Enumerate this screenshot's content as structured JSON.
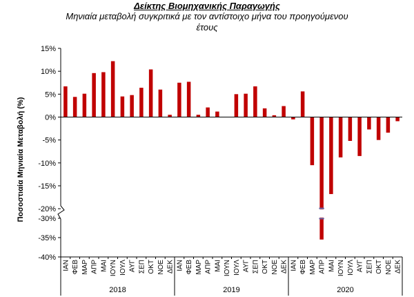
{
  "chart_data": {
    "type": "bar",
    "title": "Δείκτης Βιομηχανικής Παραγωγής",
    "subtitle": "Μηνιαία μεταβολή συγκριτικά με τον αντίστοιχο μήνα του προηγούμενου έτους",
    "ylabel": "Ποσοστιαία Μηνιαία Μεταβολή (%)",
    "xlabel": "",
    "colors": {
      "bar": "#C00000",
      "axis": "#000000",
      "break": "#6A70B0"
    },
    "axis_break": {
      "from": -20,
      "to": -30
    },
    "ylim": [
      -40,
      15
    ],
    "y_ticks": [
      {
        "v": 15,
        "label": "15%"
      },
      {
        "v": 10,
        "label": "10%"
      },
      {
        "v": 5,
        "label": "5%"
      },
      {
        "v": 0,
        "label": "0%"
      },
      {
        "v": -5,
        "label": "-5%"
      },
      {
        "v": -10,
        "label": "-10%"
      },
      {
        "v": -15,
        "label": "-15%"
      },
      {
        "v": -20,
        "label": "-20%"
      },
      {
        "v": -30,
        "label": "-30%"
      },
      {
        "v": -35,
        "label": "-35%"
      },
      {
        "v": -40,
        "label": "-40%"
      }
    ],
    "months": [
      "ΙΑΝ",
      "ΦΕΒ",
      "ΜΑΡ",
      "ΑΠΡ",
      "ΜΑΙ",
      "ΙΟΥΝ",
      "ΙΟΥΛ",
      "ΑΥΓ",
      "ΣΕΠ",
      "ΟΚΤ",
      "ΝΟΕ",
      "ΔΕΚ"
    ],
    "years": [
      "2018",
      "2019",
      "2020"
    ],
    "series": [
      {
        "year": "2018",
        "values": [
          6.7,
          4.4,
          5.1,
          9.6,
          9.8,
          12.2,
          4.5,
          4.8,
          6.4,
          10.4,
          6.0,
          0.5
        ]
      },
      {
        "year": "2019",
        "values": [
          7.5,
          7.7,
          0.5,
          2.1,
          1.2,
          0.0,
          5.0,
          5.1,
          6.7,
          1.9,
          0.4,
          2.4
        ]
      },
      {
        "year": "2020",
        "values": [
          -0.5,
          5.6,
          -10.5,
          -35.5,
          -16.8,
          -8.8,
          -5.2,
          -8.5,
          -2.7,
          -5.0,
          -3.4,
          -0.9
        ]
      }
    ]
  }
}
